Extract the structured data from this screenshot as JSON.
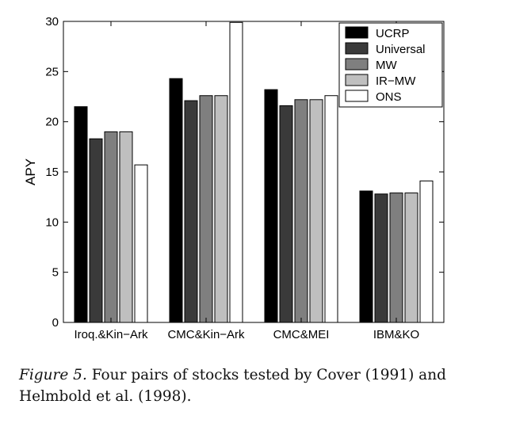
{
  "chart_data": {
    "type": "bar",
    "ylabel": "APY",
    "ylim": [
      0,
      30
    ],
    "yticks": [
      0,
      5,
      10,
      15,
      20,
      25,
      30
    ],
    "categories": [
      "Iroq.&Kin−Ark",
      "CMC&Kin−Ark",
      "CMC&MEI",
      "IBM&KO"
    ],
    "grid": false,
    "legend_position": "top-right",
    "series": [
      {
        "name": "UCRP",
        "color": "#000000",
        "values": [
          21.5,
          24.3,
          23.2,
          13.1
        ]
      },
      {
        "name": "Universal",
        "color": "#3a3a3a",
        "values": [
          18.3,
          22.1,
          21.6,
          12.8
        ]
      },
      {
        "name": "MW",
        "color": "#7f7f7f",
        "values": [
          19.0,
          22.6,
          22.2,
          12.9
        ]
      },
      {
        "name": "IR−MW",
        "color": "#bfbfbf",
        "values": [
          19.0,
          22.6,
          22.2,
          12.9
        ]
      },
      {
        "name": "ONS",
        "color": "#ffffff",
        "values": [
          15.7,
          29.9,
          22.6,
          14.1
        ]
      }
    ]
  },
  "caption": {
    "figure_label": "Figure 5.",
    "text": " Four pairs of stocks tested by Cover (1991) and Helmbold et al. (1998)."
  }
}
